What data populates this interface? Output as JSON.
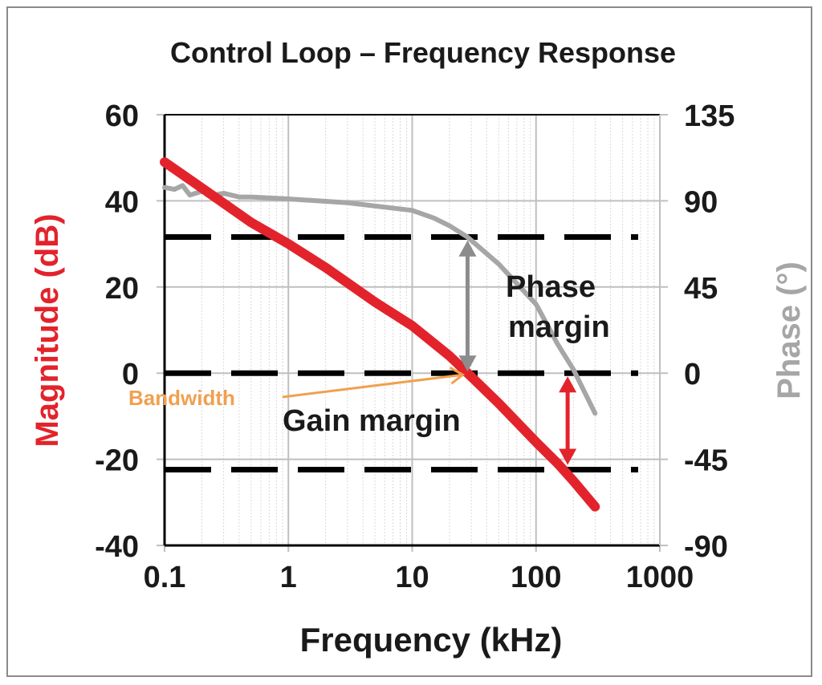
{
  "chart_data": {
    "type": "line",
    "title": "Control Loop – Frequency Response",
    "xlabel": "Frequency (kHz)",
    "ylabel": "Magnitude (dB)",
    "y2label": "Phase (°)",
    "xscale": "log",
    "xlim": [
      0.1,
      1000
    ],
    "ylim": [
      -40,
      60
    ],
    "y2lim": [
      -90,
      135
    ],
    "xticks": [
      "0.1",
      "1",
      "10",
      "100",
      "1000"
    ],
    "xtick_values": [
      0.1,
      1,
      10,
      100,
      1000
    ],
    "yticks": [
      "60",
      "40",
      "20",
      "0",
      "-20",
      "-40"
    ],
    "ytick_values": [
      60,
      40,
      20,
      0,
      -20,
      -40
    ],
    "y2ticks": [
      "135",
      "90",
      "45",
      "0",
      "-45",
      "-90"
    ],
    "y2tick_values": [
      135,
      90,
      45,
      0,
      -45,
      -90
    ],
    "grid": true,
    "colors": {
      "magnitude": "#e3232b",
      "phase": "#a6a6a6",
      "bandwidth": "#f0a050",
      "phase_arrow": "#8c8c8c",
      "gain_arrow": "#e3232b"
    },
    "series": [
      {
        "name": "Magnitude",
        "axis": "left",
        "x": [
          0.1,
          0.2,
          0.5,
          1,
          2,
          5,
          10,
          20,
          28,
          50,
          100,
          150,
          200,
          300
        ],
        "y": [
          49,
          43,
          35,
          30,
          24.5,
          16.5,
          11,
          4,
          0,
          -7,
          -16,
          -21,
          -25,
          -31
        ]
      },
      {
        "name": "Phase",
        "axis": "right",
        "x": [
          0.1,
          0.12,
          0.14,
          0.16,
          0.2,
          0.25,
          0.3,
          0.4,
          0.5,
          1,
          3,
          10,
          15,
          20,
          28,
          50,
          100,
          150,
          200,
          300
        ],
        "y": [
          97,
          96,
          98,
          93,
          95,
          93,
          94,
          92,
          92,
          91,
          89,
          85,
          81,
          77,
          71,
          57,
          36,
          15,
          2,
          -21
        ]
      }
    ],
    "reference_lines": [
      {
        "axis": "left",
        "value": 31.6
      },
      {
        "axis": "left",
        "value": 0
      },
      {
        "axis": "left",
        "value": -22.4
      }
    ],
    "annotations": {
      "phase_margin": {
        "text_line1": "Phase",
        "text_line2": "margin",
        "x": 28,
        "from_deg": 0,
        "to_deg": 71
      },
      "gain_margin": {
        "text": "Gain margin",
        "x": 180,
        "from_db": 0,
        "to_db": -22.4
      },
      "bandwidth": {
        "text": "Bandwidth",
        "x": 28,
        "y_db": 0
      }
    }
  }
}
